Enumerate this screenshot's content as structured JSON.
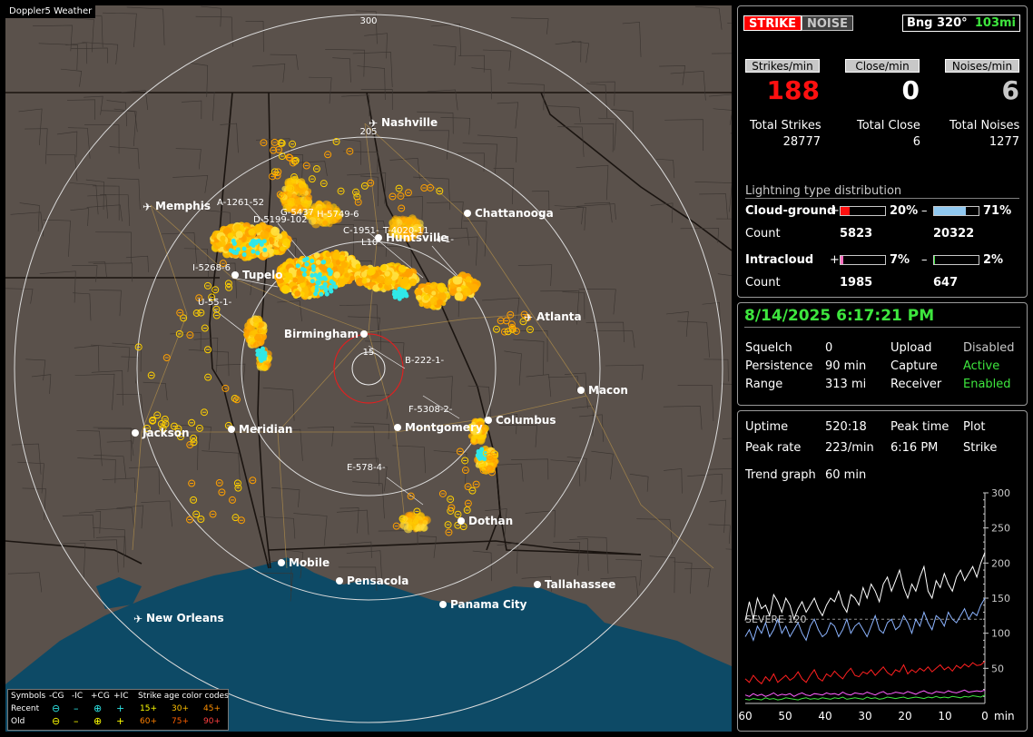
{
  "map": {
    "brand": "Doppler5 Weather",
    "ring_labels": [
      "300",
      "205",
      "15"
    ],
    "cities": [
      {
        "name": "Nashville",
        "airport": true
      },
      {
        "name": "Memphis",
        "airport": true
      },
      {
        "name": "Chattanooga"
      },
      {
        "name": "Huntsville"
      },
      {
        "name": "Tupelo"
      },
      {
        "name": "Atlanta",
        "airport": true
      },
      {
        "name": "Birmingham"
      },
      {
        "name": "Macon"
      },
      {
        "name": "Jackson"
      },
      {
        "name": "Meridian"
      },
      {
        "name": "Columbus"
      },
      {
        "name": "Montgomery"
      },
      {
        "name": "Dothan"
      },
      {
        "name": "Mobile"
      },
      {
        "name": "Pensacola"
      },
      {
        "name": "Tallahassee"
      },
      {
        "name": "Panama City"
      },
      {
        "name": "New Orleans",
        "airport": true
      }
    ],
    "cell_labels": [
      "A-1261-52",
      "G-5437",
      "D-5199-102",
      "H-5749-6",
      "C-1951-",
      "T-4020-11",
      "L10",
      "4-1-",
      "I-5268-6",
      "U-55-1-",
      "B-222-1-",
      "F-5308-2-",
      "E-578-4-"
    ]
  },
  "legend": {
    "symbols_label": "Symbols",
    "columns": [
      "-CG",
      "-IC",
      "+CG",
      "+IC"
    ],
    "age_title": "Strike age color codes",
    "recent_label": "Recent",
    "old_label": "Old",
    "recent_ages": [
      "15+",
      "30+",
      "45+"
    ],
    "old_ages": [
      "60+",
      "75+",
      "90+"
    ],
    "age_colors": [
      "#ffff00",
      "#ffc000",
      "#ff8000",
      "#ff6000",
      "#ff4000",
      "#ff2000"
    ]
  },
  "status": {
    "strike_btn": "STRIKE",
    "noise_btn": "NOISE",
    "bearing_label": "Bng 320°",
    "range_label": "103mi",
    "strikes_min_label": "Strikes/min",
    "close_min_label": "Close/min",
    "noises_min_label": "Noises/min",
    "strikes_min": "188",
    "close_min": "0",
    "noises_min": "6",
    "total_strikes_label": "Total Strikes",
    "total_close_label": "Total Close",
    "total_noises_label": "Total Noises",
    "total_strikes": "28777",
    "total_close": "6",
    "total_noises": "1277",
    "dist_title": "Lightning type distribution",
    "cg_label": "Cloud-ground",
    "ic_label": "Intracloud",
    "count_label": "Count",
    "plus_sign": "+",
    "minus_sign": "–",
    "cg_pos_pct": "20%",
    "cg_neg_pct": "71%",
    "ic_pos_pct": "7%",
    "ic_neg_pct": "2%",
    "cg_pos_frac": 0.2,
    "cg_neg_frac": 0.71,
    "ic_pos_frac": 0.07,
    "ic_neg_frac": 0.02,
    "cg_pos_count": "5823",
    "cg_neg_count": "20322",
    "ic_pos_count": "1985",
    "ic_neg_count": "647"
  },
  "settings": {
    "datetime": "8/14/2025 6:17:21 PM",
    "squelch_label": "Squelch",
    "squelch": "0",
    "persistence_label": "Persistence",
    "persistence": "90 min",
    "range_label": "Range",
    "range": "313 mi",
    "upload_label": "Upload",
    "upload": "Disabled",
    "capture_label": "Capture",
    "capture": "Active",
    "receiver_label": "Receiver",
    "receiver": "Enabled"
  },
  "trend": {
    "uptime_label": "Uptime",
    "uptime": "520:18",
    "peak_time_label": "Peak time",
    "plot_label": "Plot",
    "peak_rate_label": "Peak rate",
    "peak_rate": "223/min",
    "peak_time": "6:16 PM",
    "plot": "Strike",
    "trend_graph_label": "Trend graph",
    "trend_graph": "60 min"
  },
  "chart_data": {
    "type": "line",
    "x_ticks": [
      "60",
      "50",
      "40",
      "30",
      "20",
      "10",
      "0"
    ],
    "x_unit": "min",
    "y_ticks": [
      "300",
      "250",
      "200",
      "150",
      "100",
      "50"
    ],
    "ylim": [
      0,
      300
    ],
    "severe_label": "SEVERE 120",
    "severe_value": 120,
    "series": [
      {
        "color": "#ffffff",
        "values": [
          118,
          145,
          120,
          150,
          135,
          140,
          125,
          155,
          145,
          130,
          150,
          140,
          120,
          135,
          145,
          130,
          140,
          150,
          135,
          125,
          140,
          150,
          145,
          160,
          140,
          130,
          155,
          150,
          140,
          165,
          150,
          170,
          160,
          145,
          170,
          180,
          160,
          175,
          190,
          165,
          150,
          170,
          160,
          180,
          195,
          160,
          150,
          175,
          165,
          185,
          170,
          160,
          180,
          190,
          175,
          185,
          195,
          180,
          200,
          215
        ]
      },
      {
        "color": "#8cb4ff",
        "values": [
          95,
          105,
          90,
          110,
          100,
          115,
          95,
          105,
          120,
          100,
          110,
          95,
          105,
          115,
          100,
          90,
          110,
          120,
          105,
          95,
          100,
          115,
          110,
          95,
          105,
          120,
          100,
          110,
          115,
          105,
          95,
          110,
          125,
          105,
          100,
          115,
          120,
          105,
          110,
          125,
          115,
          100,
          120,
          110,
          130,
          115,
          105,
          125,
          120,
          110,
          130,
          120,
          115,
          125,
          135,
          120,
          130,
          125,
          140,
          150
        ]
      },
      {
        "color": "#ff2020",
        "values": [
          35,
          30,
          40,
          33,
          28,
          38,
          32,
          42,
          30,
          35,
          40,
          33,
          37,
          45,
          35,
          30,
          40,
          48,
          36,
          32,
          42,
          38,
          46,
          40,
          35,
          44,
          50,
          40,
          38,
          45,
          42,
          48,
          40,
          46,
          52,
          44,
          40,
          48,
          45,
          55,
          42,
          48,
          44,
          50,
          46,
          52,
          45,
          50,
          55,
          48,
          52,
          46,
          54,
          50,
          56,
          52,
          58,
          54,
          55,
          60
        ]
      },
      {
        "color": "#ff60ff",
        "values": [
          12,
          10,
          14,
          11,
          13,
          10,
          12,
          15,
          11,
          13,
          12,
          14,
          10,
          13,
          15,
          12,
          11,
          14,
          13,
          12,
          15,
          13,
          14,
          12,
          16,
          13,
          12,
          15,
          14,
          13,
          16,
          14,
          12,
          15,
          17,
          13,
          14,
          16,
          15,
          14,
          17,
          15,
          13,
          16,
          18,
          15,
          14,
          17,
          16,
          15,
          18,
          16,
          15,
          17,
          19,
          16,
          17,
          18,
          17,
          19
        ]
      },
      {
        "color": "#3ee63e",
        "values": [
          6,
          5,
          7,
          6,
          5,
          8,
          6,
          7,
          5,
          6,
          8,
          7,
          6,
          5,
          7,
          8,
          6,
          7,
          6,
          8,
          7,
          6,
          8,
          7,
          9,
          6,
          7,
          8,
          7,
          6,
          9,
          7,
          8,
          6,
          7,
          9,
          8,
          7,
          8,
          9,
          7,
          8,
          9,
          8,
          7,
          9,
          8,
          10,
          8,
          9,
          8,
          10,
          9,
          8,
          10,
          9,
          11,
          10,
          9,
          12
        ]
      }
    ]
  }
}
